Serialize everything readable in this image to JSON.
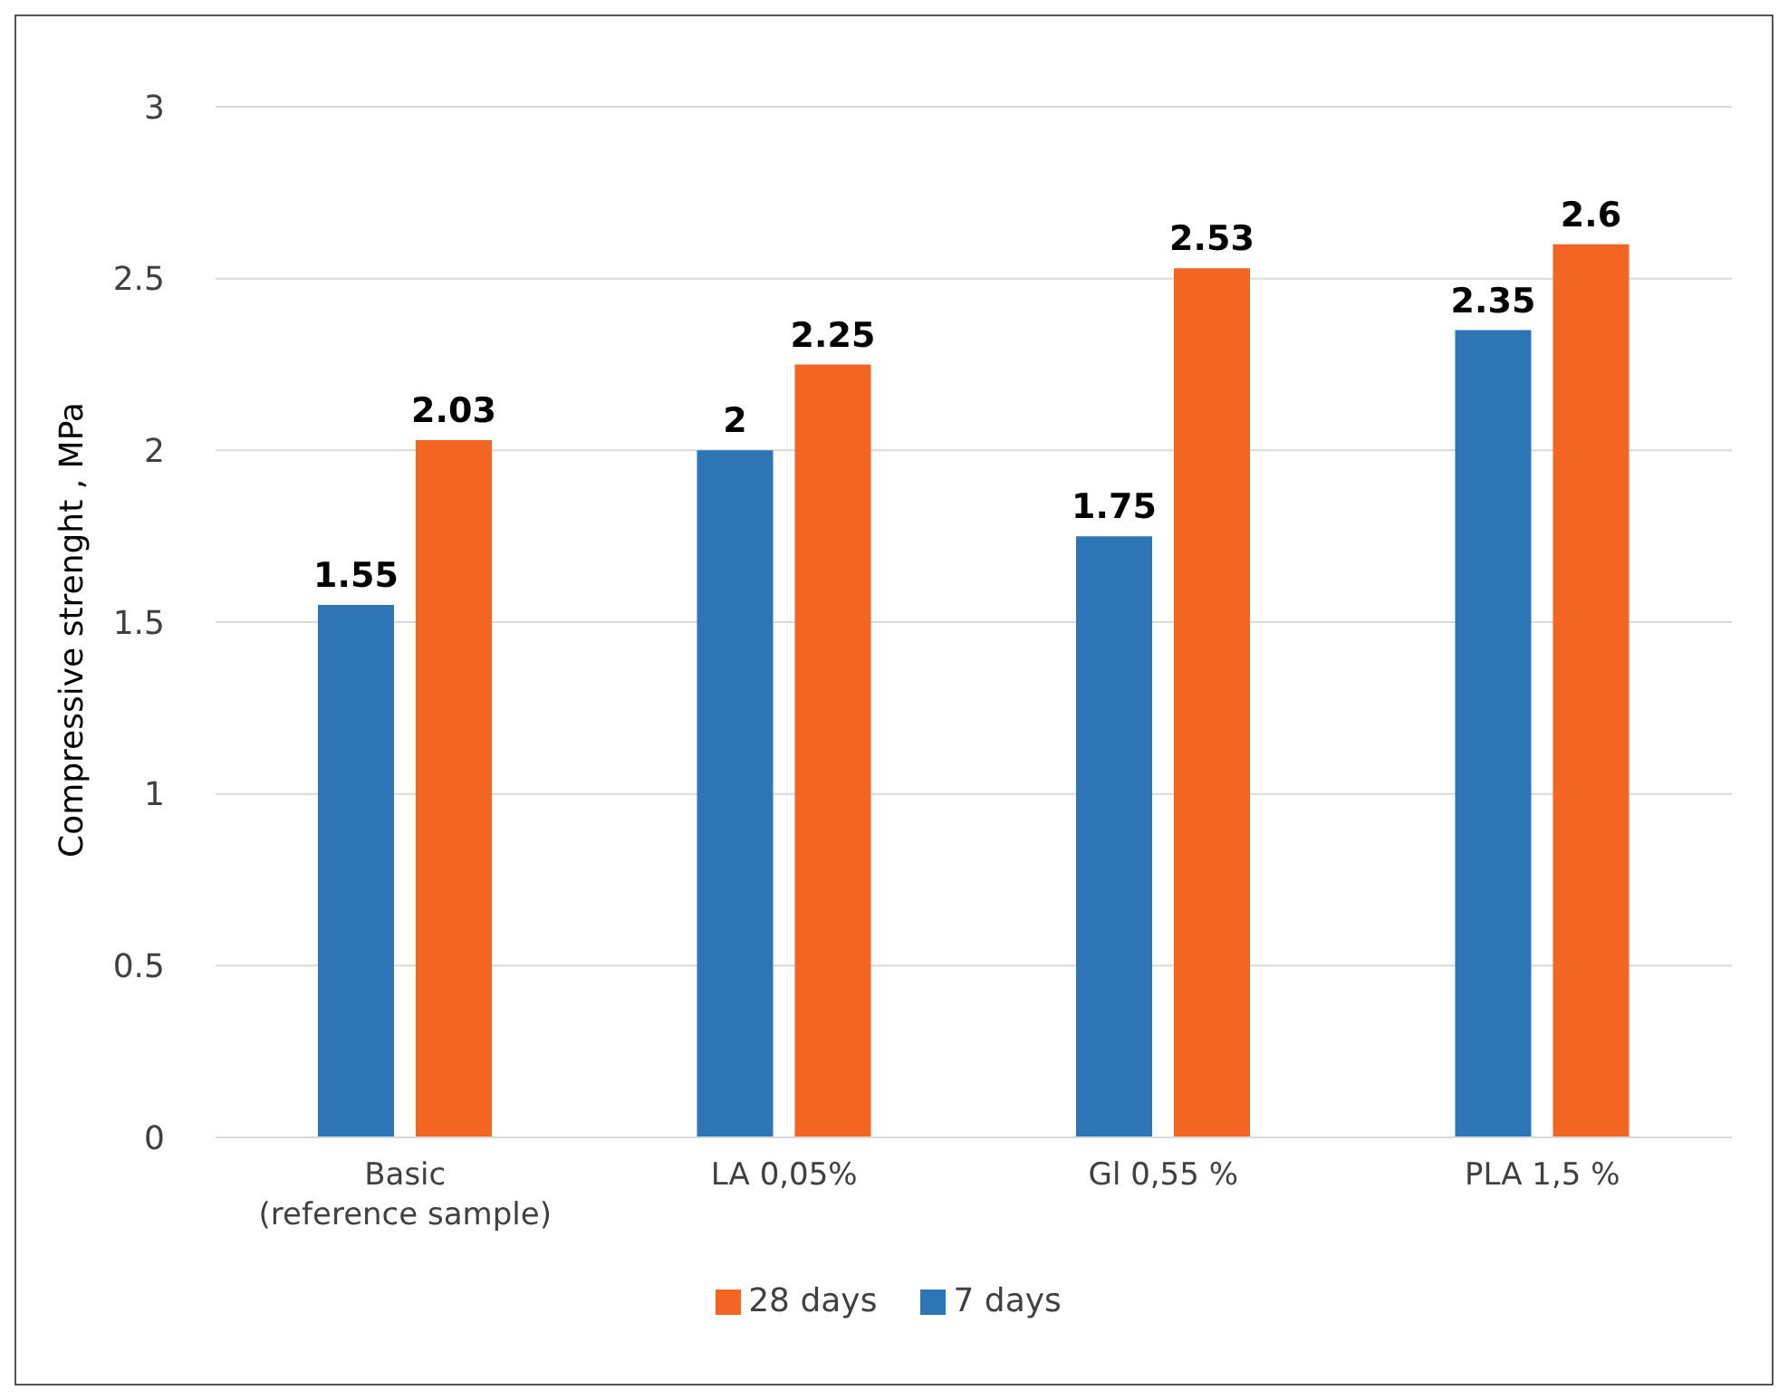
{
  "chart_data": {
    "type": "bar",
    "ylabel": "Compressive strenght , MPa",
    "categories": [
      "Basic\n(reference sample)",
      "LA 0,05%",
      "Gl 0,55 %",
      "PLA 1,5 %"
    ],
    "series": [
      {
        "name": "7 days",
        "color": "#2e75b6",
        "values": [
          1.55,
          2,
          1.75,
          2.35
        ]
      },
      {
        "name": "28 days",
        "color": "#f26522",
        "values": [
          2.03,
          2.25,
          2.53,
          2.6
        ]
      }
    ],
    "ylim": [
      0,
      3
    ],
    "yticks": [
      0,
      0.5,
      1,
      1.5,
      2,
      2.5,
      3
    ],
    "grid": "y",
    "legend": "bottom",
    "data_labels": true
  }
}
